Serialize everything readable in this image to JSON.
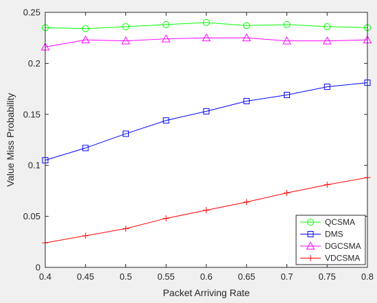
{
  "chart_data": {
    "type": "line",
    "title": "",
    "xlabel": "Packet Arriving Rate",
    "ylabel": "Value Miss Probability",
    "xlim": [
      0.4,
      0.8
    ],
    "ylim": [
      0,
      0.25
    ],
    "x": [
      0.4,
      0.45,
      0.5,
      0.55,
      0.6,
      0.65,
      0.7,
      0.75,
      0.8
    ],
    "x_tick_labels": [
      "0.4",
      "0.45",
      "0.5",
      "0.55",
      "0.6",
      "0.65",
      "0.7",
      "0.75",
      "0.8"
    ],
    "y_ticks": [
      0,
      0.05,
      0.1,
      0.15,
      0.2,
      0.25
    ],
    "y_tick_labels": [
      "0",
      "0.05",
      "0.1",
      "0.15",
      "0.2",
      "0.25"
    ],
    "grid": false,
    "legend_position": "bottom-right",
    "series": [
      {
        "name": "QCSMA",
        "color": "#00ff00",
        "marker": "circle",
        "values": [
          0.235,
          0.234,
          0.236,
          0.238,
          0.24,
          0.237,
          0.238,
          0.236,
          0.235
        ]
      },
      {
        "name": "DMS",
        "color": "#0000ff",
        "marker": "square",
        "values": [
          0.105,
          0.117,
          0.131,
          0.144,
          0.153,
          0.163,
          0.169,
          0.177,
          0.181
        ]
      },
      {
        "name": "DGCSMA",
        "color": "#ff00ff",
        "marker": "triangle",
        "values": [
          0.216,
          0.223,
          0.222,
          0.224,
          0.225,
          0.225,
          0.222,
          0.222,
          0.223
        ]
      },
      {
        "name": "VDCSMA",
        "color": "#ff0000",
        "marker": "plus",
        "values": [
          0.024,
          0.031,
          0.038,
          0.048,
          0.056,
          0.064,
          0.073,
          0.081,
          0.088
        ]
      }
    ]
  }
}
